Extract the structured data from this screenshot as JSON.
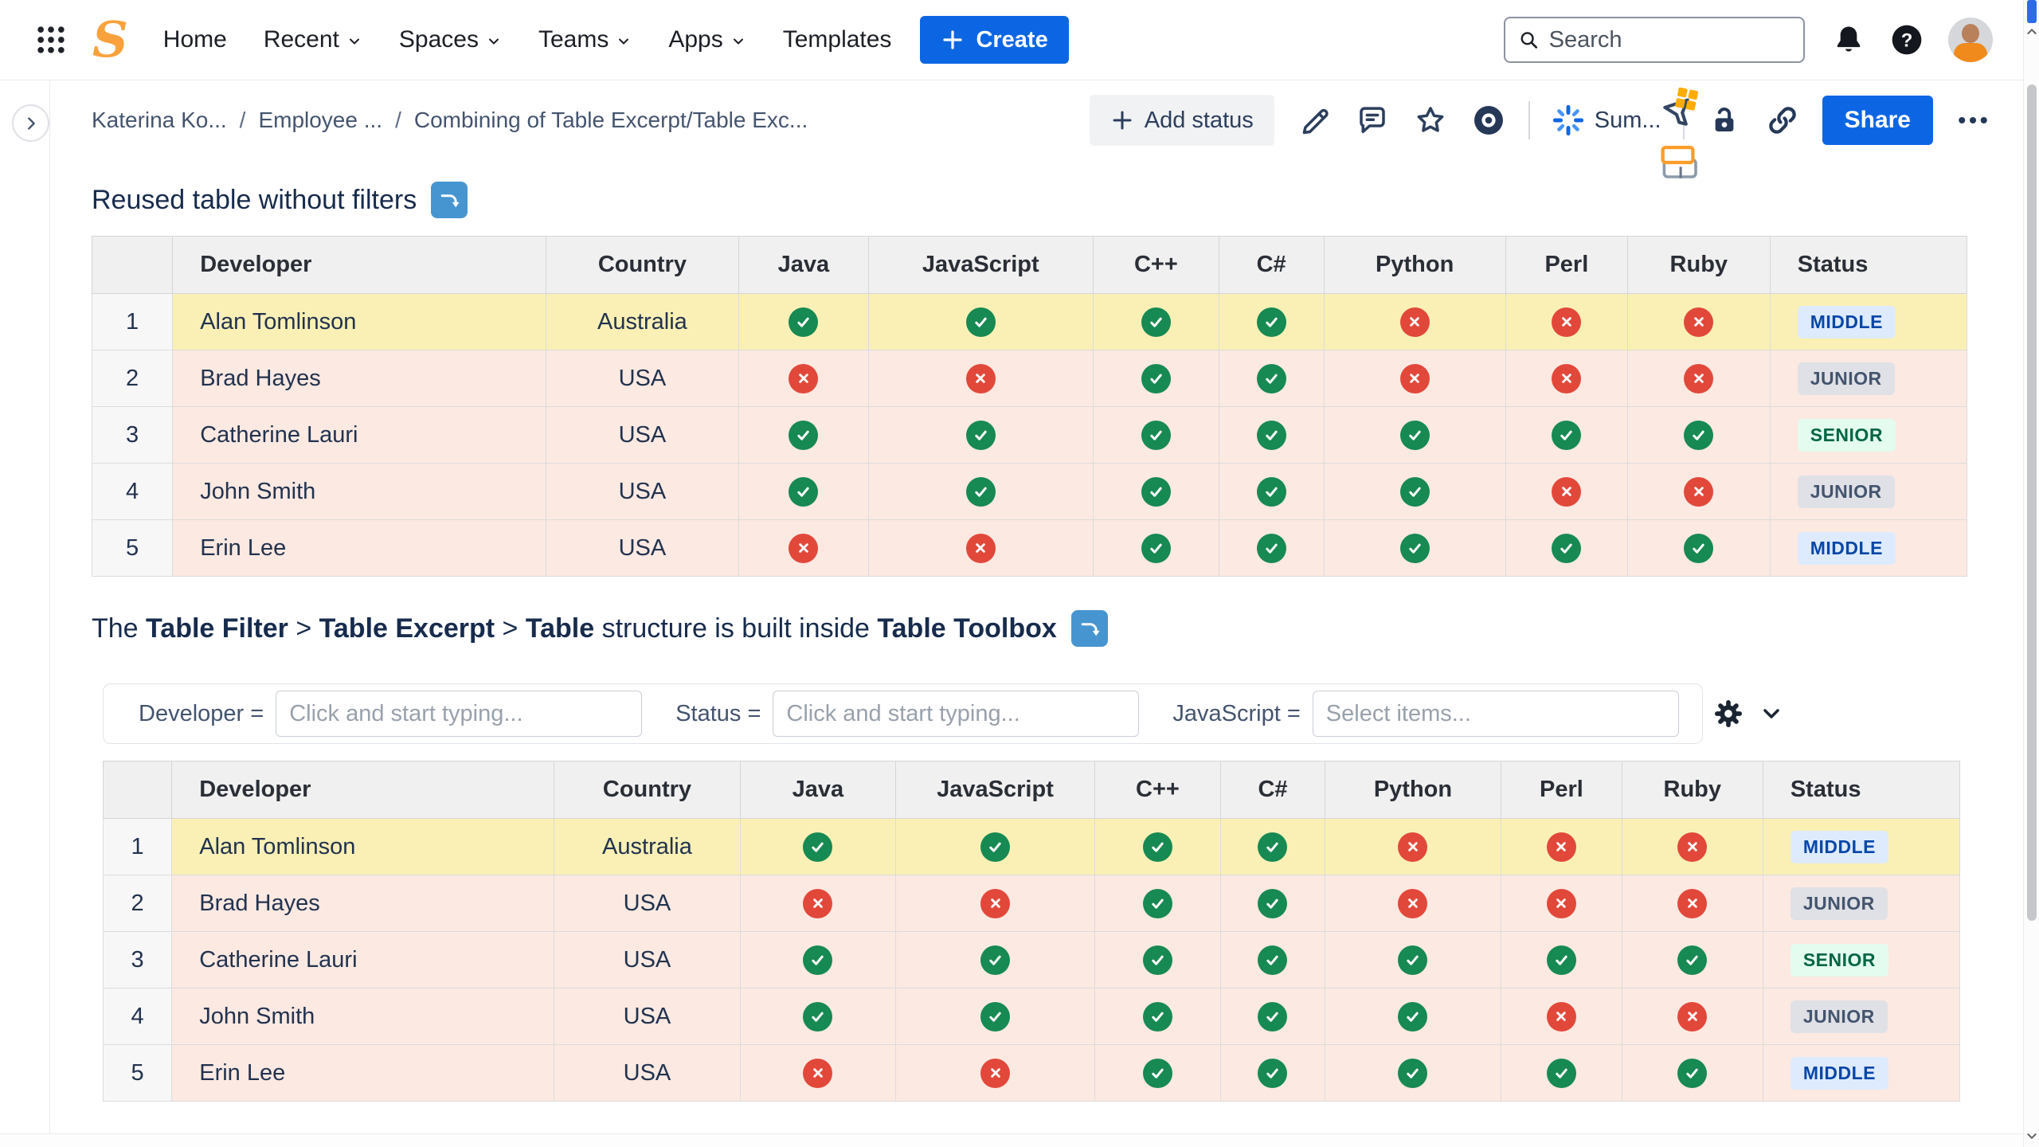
{
  "nav": {
    "logo_letter": "S",
    "items": [
      {
        "label": "Home",
        "has_dropdown": false
      },
      {
        "label": "Recent",
        "has_dropdown": true
      },
      {
        "label": "Spaces",
        "has_dropdown": true
      },
      {
        "label": "Teams",
        "has_dropdown": true
      },
      {
        "label": "Apps",
        "has_dropdown": true
      },
      {
        "label": "Templates",
        "has_dropdown": false
      }
    ],
    "create_label": "Create",
    "search_placeholder": "Search"
  },
  "breadcrumb": [
    "Katerina Ko...",
    "Employee ...",
    "Combining of Table Excerpt/Table Exc..."
  ],
  "toolbar": {
    "add_status": "Add status",
    "summarize": "Sum...",
    "share": "Share"
  },
  "content": {
    "heading1": "Reused table without filters",
    "heading2_parts": [
      {
        "text": "The ",
        "bold": false
      },
      {
        "text": "Table Filter",
        "bold": true
      },
      {
        "text": " > ",
        "bold": false
      },
      {
        "text": "Table Excerpt",
        "bold": true
      },
      {
        "text": " > ",
        "bold": false
      },
      {
        "text": "Table",
        "bold": true
      },
      {
        "text": " structure is built inside ",
        "bold": false
      },
      {
        "text": "Table Toolbox",
        "bold": true
      }
    ]
  },
  "filter_bar": {
    "filters": [
      {
        "label": "Developer =",
        "placeholder": "Click and start typing..."
      },
      {
        "label": "Status =",
        "placeholder": "Click and start typing..."
      },
      {
        "label": "JavaScript =",
        "placeholder": "Select items..."
      }
    ]
  },
  "table": {
    "columns": [
      "Developer",
      "Country",
      "Java",
      "JavaScript",
      "C++",
      "C#",
      "Python",
      "Perl",
      "Ruby",
      "Status"
    ],
    "rows": [
      {
        "num": "1",
        "developer": "Alan Tomlinson",
        "country": "Australia",
        "skills": [
          true,
          true,
          true,
          true,
          false,
          false,
          false
        ],
        "status": "MIDDLE",
        "highlight": "yellow"
      },
      {
        "num": "2",
        "developer": "Brad Hayes",
        "country": "USA",
        "skills": [
          false,
          false,
          true,
          true,
          false,
          false,
          false
        ],
        "status": "JUNIOR",
        "highlight": "pink"
      },
      {
        "num": "3",
        "developer": "Catherine Lauri",
        "country": "USA",
        "skills": [
          true,
          true,
          true,
          true,
          true,
          true,
          true
        ],
        "status": "SENIOR",
        "highlight": "pink"
      },
      {
        "num": "4",
        "developer": "John Smith",
        "country": "USA",
        "skills": [
          true,
          true,
          true,
          true,
          true,
          false,
          false
        ],
        "status": "JUNIOR",
        "highlight": "pink"
      },
      {
        "num": "5",
        "developer": "Erin Lee",
        "country": "USA",
        "skills": [
          false,
          false,
          true,
          true,
          true,
          true,
          true
        ],
        "status": "MIDDLE",
        "highlight": "pink"
      }
    ]
  },
  "colors": {
    "accent_blue": "#0C66E4",
    "logo_orange": "#F9A13C",
    "macro_icon_blue": "#4795D0",
    "row_yellow": "#FAF0B5",
    "row_pink": "#FCE9E2",
    "check_green": "#178952",
    "cross_red": "#E2483A",
    "badge_middle_bg": "#DEEBFF",
    "badge_middle_text": "#0747A6",
    "badge_junior_bg": "#DFE1E6",
    "badge_junior_text": "#44546F",
    "badge_senior_bg": "#E3FCEF",
    "badge_senior_text": "#006644"
  }
}
